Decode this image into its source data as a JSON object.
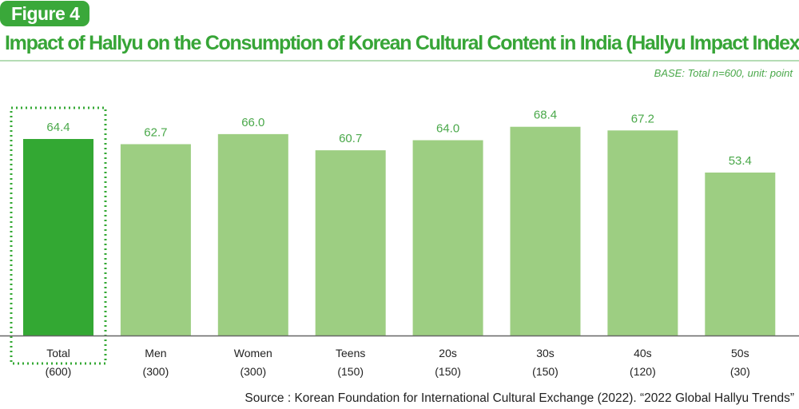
{
  "badge": "Figure 4",
  "title": "Impact of Hallyu on the Consumption of Korean Cultural Content in India (Hallyu Impact Index)",
  "base_note": "BASE: Total n=600, unit: point",
  "source": "Source : Korean Foundation for International Cultural Exchange (2022). “2022 Global Hallyu Trends”",
  "colors": {
    "highlight": "#33a833",
    "bar": "#9dce82",
    "label": "#4aa84a",
    "title": "#37a537"
  },
  "chart_data": {
    "type": "bar",
    "title": "Impact of Hallyu on the Consumption of Korean Cultural Content in India (Hallyu Impact Index)",
    "categories": [
      "Total",
      "Men",
      "Women",
      "Teens",
      "20s",
      "30s",
      "40s",
      "50s"
    ],
    "sample_sizes": [
      "(600)",
      "(300)",
      "(300)",
      "(150)",
      "(150)",
      "(150)",
      "(120)",
      "(30)"
    ],
    "values": [
      64.4,
      62.7,
      66.0,
      60.7,
      64.0,
      68.4,
      67.2,
      53.4
    ],
    "highlighted": "Total",
    "ylim": [
      0,
      100
    ],
    "grid": false,
    "unit": "point"
  }
}
